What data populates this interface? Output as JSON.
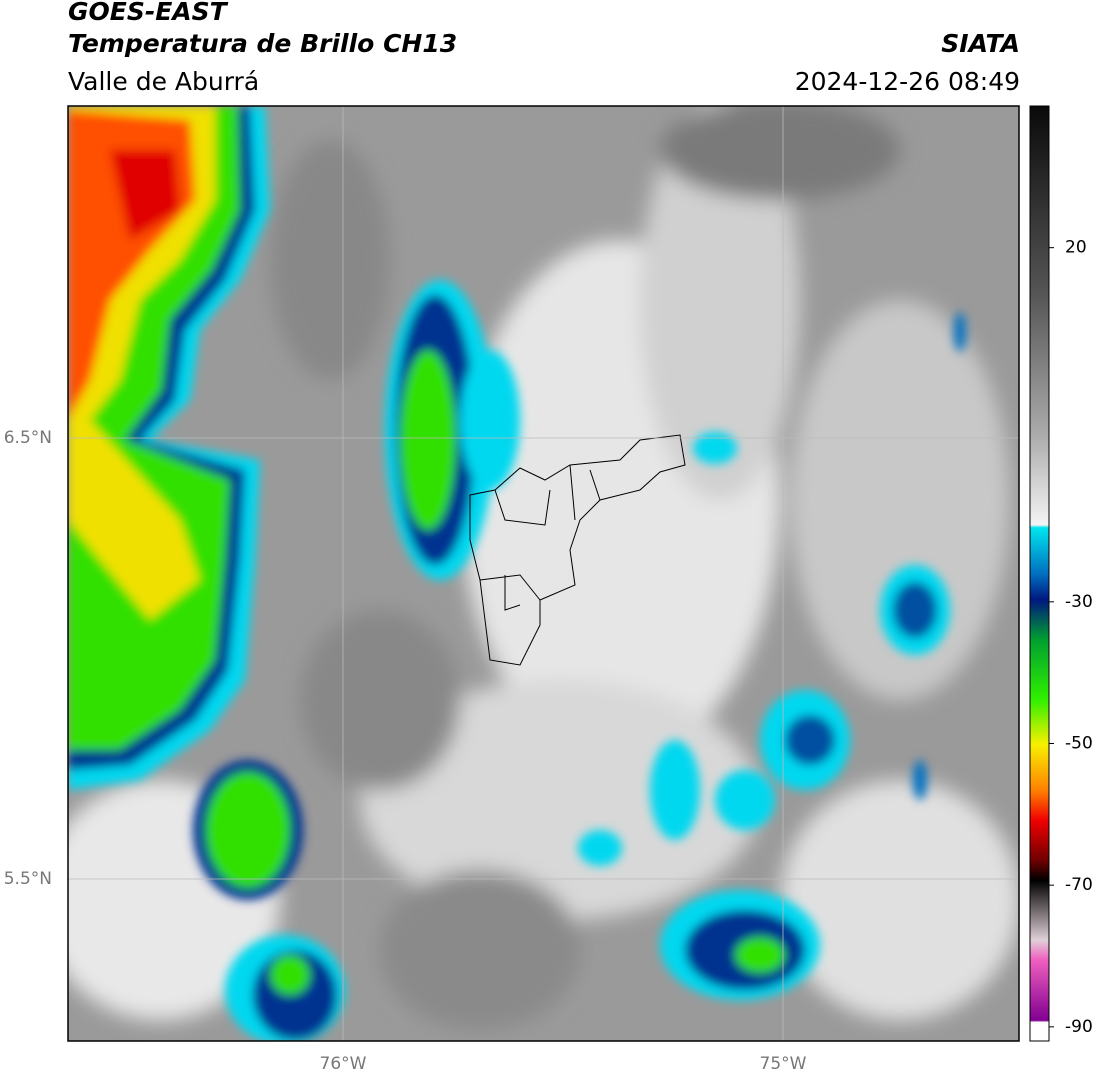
{
  "header": {
    "title": "GOES-EAST",
    "subtitle": "Temperatura de Brillo CH13",
    "region": "Valle de Aburrá",
    "source": "SIATA",
    "datetime": "2024-12-26 08:49"
  },
  "map": {
    "lat_labels": [
      "6.5°N",
      "5.5°N"
    ],
    "lon_labels": [
      "76°W",
      "75°W"
    ]
  },
  "colorbar": {
    "lim": [
      -92,
      40
    ],
    "ticks": [
      20,
      -30,
      -50,
      -70,
      -90
    ]
  }
}
